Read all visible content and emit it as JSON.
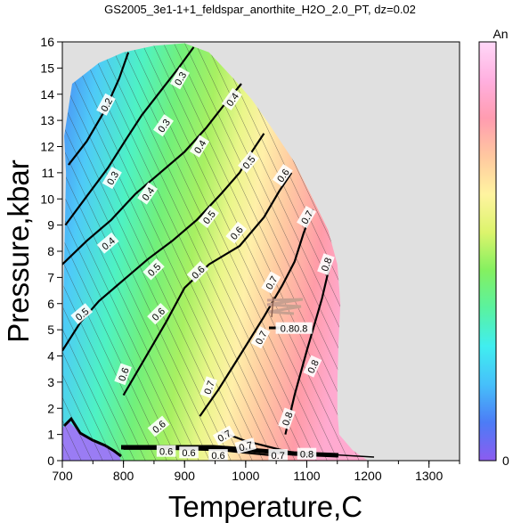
{
  "chart_data": {
    "type": "heatmap",
    "title": "GS2005_3e1-1+1_feldspar_anorthite_H2O_2.0_PT, dz=0.02",
    "xlabel": "Temperature,C",
    "ylabel": "Pressure,kbar",
    "xlim": [
      700,
      1350
    ],
    "ylim": [
      0,
      16
    ],
    "x_ticks": [
      700,
      800,
      900,
      1000,
      1100,
      1200,
      1300
    ],
    "y_ticks": [
      0,
      1,
      2,
      3,
      4,
      5,
      6,
      7,
      8,
      9,
      10,
      11,
      12,
      13,
      14,
      15,
      16
    ],
    "x_tick_labels": [
      "700",
      "800",
      "900",
      "1000",
      "1100",
      "1200",
      "1300"
    ],
    "y_tick_labels": [
      "0",
      "1",
      "2",
      "3",
      "4",
      "5",
      "6",
      "7",
      "8",
      "9",
      "10",
      "11",
      "12",
      "13",
      "14",
      "15",
      "16"
    ],
    "colorbar": {
      "label": "An",
      "min_label": "0",
      "min": 0,
      "max": 1,
      "colors": [
        "#8c5cf0",
        "#4c7cf6",
        "#46c0fa",
        "#40eef0",
        "#5af2a0",
        "#84f060",
        "#dcf46c",
        "#fff4a0",
        "#ffc8a0",
        "#ff9cb0",
        "#ffb0e0",
        "#ffd8f8"
      ]
    },
    "grid": false,
    "background_color": "#e0e0e0",
    "contours": [
      {
        "level": "0.2",
        "points": [
          [
            710,
            11.3
          ],
          [
            740,
            12.2
          ],
          [
            770,
            13.4
          ],
          [
            793,
            14.6
          ],
          [
            808,
            15.6
          ]
        ]
      },
      {
        "level": "0.3",
        "points": [
          [
            705,
            9.0
          ],
          [
            740,
            10.1
          ],
          [
            775,
            11.2
          ],
          [
            805,
            12.3
          ],
          [
            830,
            13.2
          ],
          [
            860,
            14.1
          ],
          [
            890,
            15.0
          ],
          [
            915,
            15.8
          ]
        ]
      },
      {
        "level": "0.4",
        "points": [
          [
            700,
            7.5
          ],
          [
            740,
            8.4
          ],
          [
            780,
            9.2
          ],
          [
            820,
            10.2
          ],
          [
            860,
            11.0
          ],
          [
            900,
            11.8
          ],
          [
            935,
            12.7
          ],
          [
            965,
            13.6
          ],
          [
            993,
            14.4
          ]
        ]
      },
      {
        "level": "0.5",
        "points": [
          [
            700,
            4.2
          ],
          [
            730,
            5.3
          ],
          [
            760,
            6.1
          ],
          [
            800,
            6.9
          ],
          [
            840,
            7.7
          ],
          [
            880,
            8.4
          ],
          [
            920,
            9.2
          ],
          [
            960,
            10.2
          ],
          [
            990,
            11.0
          ],
          [
            1010,
            11.8
          ],
          [
            1030,
            12.5
          ]
        ]
      },
      {
        "level": "0.6",
        "points": [
          [
            800,
            2.5
          ],
          [
            835,
            3.9
          ],
          [
            870,
            5.3
          ],
          [
            900,
            6.6
          ],
          [
            940,
            7.5
          ],
          [
            990,
            8.2
          ],
          [
            1030,
            9.3
          ],
          [
            1055,
            10.3
          ],
          [
            1075,
            11.0
          ]
        ]
      },
      {
        "level": "0.7",
        "points": [
          [
            925,
            1.7
          ],
          [
            955,
            2.7
          ],
          [
            990,
            4.0
          ],
          [
            1030,
            5.5
          ],
          [
            1060,
            6.7
          ],
          [
            1080,
            7.6
          ],
          [
            1095,
            8.7
          ],
          [
            1110,
            9.6
          ]
        ]
      },
      {
        "level": "0.8",
        "points": [
          [
            1065,
            1.0
          ],
          [
            1080,
            2.5
          ],
          [
            1100,
            4.2
          ],
          [
            1125,
            6.2
          ],
          [
            1138,
            7.5
          ]
        ]
      },
      {
        "level": "0.6",
        "points": [
          [
            800,
            0.45
          ],
          [
            870,
            0.45
          ],
          [
            960,
            0.4
          ],
          [
            1000,
            0.3
          ],
          [
            1045,
            0.2
          ]
        ]
      },
      {
        "level": "0.7",
        "points": [
          [
            960,
            1.1
          ],
          [
            1000,
            0.75
          ],
          [
            1060,
            0.4
          ],
          [
            1105,
            0.15
          ]
        ]
      }
    ],
    "contour_labels": [
      {
        "text": "0.2",
        "t": 772,
        "p": 13.6,
        "angle": -62
      },
      {
        "text": "0.3",
        "t": 893,
        "p": 14.6,
        "angle": -60
      },
      {
        "text": "0.3",
        "t": 782,
        "p": 10.8,
        "angle": -60
      },
      {
        "text": "0.3",
        "t": 866,
        "p": 12.8,
        "angle": -55
      },
      {
        "text": "0.4",
        "t": 978,
        "p": 13.8,
        "angle": -55
      },
      {
        "text": "0.4",
        "t": 840,
        "p": 10.2,
        "angle": -55
      },
      {
        "text": "0.4",
        "t": 925,
        "p": 12.0,
        "angle": -58
      },
      {
        "text": "0.4",
        "t": 775,
        "p": 8.3,
        "angle": -40
      },
      {
        "text": "0.5",
        "t": 1005,
        "p": 11.4,
        "angle": -50
      },
      {
        "text": "0.5",
        "t": 940,
        "p": 9.3,
        "angle": -52
      },
      {
        "text": "0.5",
        "t": 850,
        "p": 7.3,
        "angle": -45
      },
      {
        "text": "0.5",
        "t": 732,
        "p": 5.6,
        "angle": -40
      },
      {
        "text": "0.6",
        "t": 1061,
        "p": 10.9,
        "angle": -55
      },
      {
        "text": "0.6",
        "t": 985,
        "p": 8.7,
        "angle": -50
      },
      {
        "text": "0.6",
        "t": 922,
        "p": 7.2,
        "angle": -45
      },
      {
        "text": "0.6",
        "t": 857,
        "p": 5.6,
        "angle": -45
      },
      {
        "text": "0.6",
        "t": 800,
        "p": 3.3,
        "angle": -70
      },
      {
        "text": "0.6",
        "t": 858,
        "p": 1.3,
        "angle": -40
      },
      {
        "text": "0.6",
        "t": 870,
        "p": 0.35,
        "angle": 0
      },
      {
        "text": "0.6",
        "t": 907,
        "p": 0.3,
        "angle": 0
      },
      {
        "text": "0.6",
        "t": 955,
        "p": 0.2,
        "angle": 0
      },
      {
        "text": "0.7",
        "t": 1100,
        "p": 9.3,
        "angle": -60
      },
      {
        "text": "0.7",
        "t": 1042,
        "p": 6.8,
        "angle": -60
      },
      {
        "text": "0.7",
        "t": 1025,
        "p": 4.7,
        "angle": -62
      },
      {
        "text": "0.7",
        "t": 940,
        "p": 2.8,
        "angle": -70
      },
      {
        "text": "0.7",
        "t": 965,
        "p": 0.95,
        "angle": -30
      },
      {
        "text": "0.7",
        "t": 1000,
        "p": 0.55,
        "angle": -15
      },
      {
        "text": "0.7",
        "t": 1053,
        "p": 0.2,
        "angle": 0
      },
      {
        "text": "0.8",
        "t": 1132,
        "p": 7.5,
        "angle": -70
      },
      {
        "text": "0.8",
        "t": 1110,
        "p": 3.6,
        "angle": -65
      },
      {
        "text": "0.8",
        "t": 1068,
        "p": 1.6,
        "angle": -70
      },
      {
        "text": "0.8",
        "t": 1100,
        "p": 0.25,
        "angle": 0
      },
      {
        "text": "0.80.8",
        "t": 1079,
        "p": 5.05,
        "angle": 0
      }
    ],
    "stability_field": [
      [
        700,
        4.3
      ],
      [
        706,
        11.0
      ],
      [
        703,
        12.4
      ],
      [
        716,
        14.4
      ],
      [
        760,
        15.2
      ],
      [
        800,
        15.6
      ],
      [
        850,
        15.85
      ],
      [
        900,
        15.95
      ],
      [
        940,
        15.6
      ],
      [
        980,
        14.6
      ],
      [
        1010,
        13.8
      ],
      [
        1040,
        12.8
      ],
      [
        1080,
        11.4
      ],
      [
        1110,
        10.0
      ],
      [
        1135,
        8.8
      ],
      [
        1150,
        7.5
      ],
      [
        1155,
        6.0
      ],
      [
        1152,
        4.5
      ],
      [
        1150,
        3.0
      ],
      [
        1150,
        1.9
      ],
      [
        1153,
        1.0
      ],
      [
        1175,
        0.4
      ],
      [
        1200,
        0.0
      ],
      [
        700,
        0.0
      ]
    ]
  }
}
